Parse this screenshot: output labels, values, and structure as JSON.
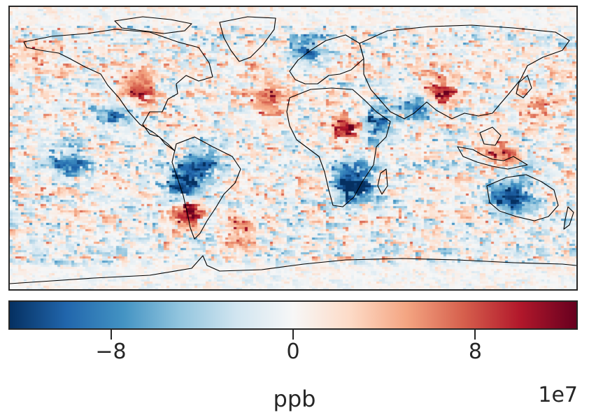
{
  "map": {
    "projection": "equirectangular",
    "extent_lon": [
      -180,
      180
    ],
    "extent_lat": [
      -90,
      90
    ],
    "coastlines": true,
    "colormap": "RdBu_r"
  },
  "colorbar": {
    "orientation": "horizontal",
    "label": "ppb",
    "offset_text": "1e7",
    "ticks": [
      {
        "value": -8,
        "label": "−8"
      },
      {
        "value": 0,
        "label": "0"
      },
      {
        "value": 8,
        "label": "8"
      }
    ],
    "vmin": -12.5,
    "vmax": 12.5,
    "colors": [
      "#053061",
      "#2166ac",
      "#4393c3",
      "#92c5de",
      "#d1e5f0",
      "#f7f7f7",
      "#fddbc7",
      "#f4a582",
      "#d6604d",
      "#b2182b",
      "#67001f"
    ]
  },
  "chart_data": {
    "type": "heatmap",
    "title": "",
    "xlabel": "",
    "ylabel": "",
    "colorbar_label": "ppb",
    "value_scale": "1e7",
    "range": [
      -12.5,
      12.5
    ]
  }
}
